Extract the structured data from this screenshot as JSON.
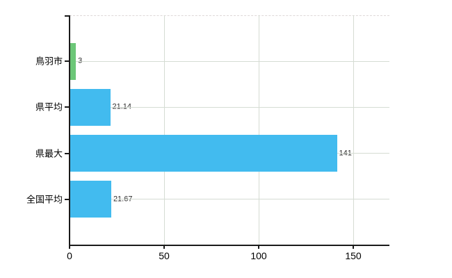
{
  "chart_data": {
    "type": "bar",
    "orientation": "horizontal",
    "title": "",
    "xlabel": "",
    "ylabel": "",
    "categories": [
      "鳥羽市",
      "県平均",
      "県最大",
      "全国平均"
    ],
    "values": [
      3,
      21.14,
      141,
      21.67
    ],
    "value_labels": [
      "3",
      "21.14",
      "141",
      "21.67"
    ],
    "bar_colors": [
      "#6cc778",
      "#42bbef",
      "#42bbef",
      "#42bbef"
    ],
    "x_ticks": [
      0,
      50,
      100,
      150
    ],
    "x_tick_labels": [
      "0",
      "50",
      "100",
      "150"
    ],
    "xlim": [
      0,
      169
    ],
    "grid": true,
    "legend": null,
    "colors": {
      "background": "#ffffff",
      "axis": "#1a1a1a",
      "gridline": "#d5dcd3",
      "top_border_dashed": "#ded8d8",
      "category_label": "#000000",
      "value_label": "#2b2b2b",
      "bar_blue": "#42bbef",
      "bar_green": "#6cc778"
    }
  }
}
